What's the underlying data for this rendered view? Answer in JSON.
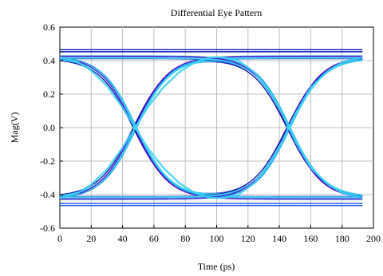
{
  "chart_data": {
    "type": "line",
    "title": "Differential Eye Pattern",
    "xlabel": "Time (ps)",
    "ylabel": "Mag(V)",
    "xlim": [
      0,
      200
    ],
    "ylim": [
      -0.6,
      0.6
    ],
    "x_ticks": [
      "0",
      "20",
      "40",
      "60",
      "80",
      "100",
      "120",
      "140",
      "160",
      "180",
      "200"
    ],
    "y_ticks": [
      "0.6",
      "0.4",
      "0.2",
      "0.0",
      "-0.2",
      "-0.4",
      "-0.6"
    ],
    "grid": true,
    "legend": "none",
    "colors": [
      "#0a14b4",
      "#1e5af0",
      "#14a0e6",
      "#3cd2f0",
      "#5a00c8"
    ],
    "eye": {
      "crossings_ps": [
        48,
        146
      ],
      "unit_interval_ps": 98,
      "high_level_V": 0.42,
      "low_level_V": -0.42,
      "rail_high_V": 0.465,
      "rail_low_V": -0.465,
      "eye_height_V": 0.8,
      "time_span_ps": [
        0,
        193
      ]
    },
    "series": [
      {
        "values_note": "",
        "x": [
          0,
          10,
          20,
          30,
          40,
          48,
          56,
          66,
          76,
          86,
          96,
          104
        ],
        "y": [
          -0.42,
          -0.4,
          -0.34,
          -0.25,
          -0.12,
          0.0,
          0.12,
          0.24,
          0.33,
          0.39,
          0.42,
          0.42
        ]
      },
      {
        "x": [
          0,
          10,
          20,
          30,
          40,
          48,
          56,
          66,
          76,
          86,
          96,
          104
        ],
        "y": [
          0.42,
          0.4,
          0.34,
          0.25,
          0.12,
          0.0,
          -0.12,
          -0.24,
          -0.33,
          -0.39,
          -0.42,
          -0.42
        ]
      },
      {
        "x": [
          104,
          114,
          124,
          134,
          142,
          146,
          150,
          160,
          170,
          180,
          193
        ],
        "y": [
          0.42,
          0.4,
          0.33,
          0.21,
          0.08,
          0.0,
          -0.08,
          -0.24,
          -0.33,
          -0.39,
          -0.42
        ]
      },
      {
        "x": [
          104,
          114,
          124,
          134,
          142,
          146,
          150,
          160,
          170,
          180,
          193
        ],
        "y": [
          -0.42,
          -0.4,
          -0.33,
          -0.21,
          -0.08,
          0.0,
          0.08,
          0.24,
          0.33,
          0.39,
          0.42
        ]
      }
    ]
  }
}
